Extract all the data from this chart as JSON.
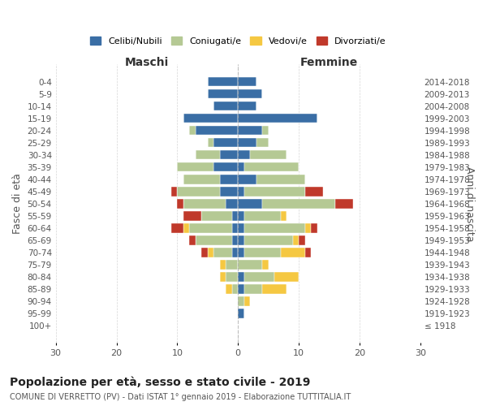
{
  "age_groups": [
    "100+",
    "95-99",
    "90-94",
    "85-89",
    "80-84",
    "75-79",
    "70-74",
    "65-69",
    "60-64",
    "55-59",
    "50-54",
    "45-49",
    "40-44",
    "35-39",
    "30-34",
    "25-29",
    "20-24",
    "15-19",
    "10-14",
    "5-9",
    "0-4"
  ],
  "birth_years": [
    "≤ 1918",
    "1919-1923",
    "1924-1928",
    "1929-1933",
    "1934-1938",
    "1939-1943",
    "1944-1948",
    "1949-1953",
    "1954-1958",
    "1959-1963",
    "1964-1968",
    "1969-1973",
    "1974-1978",
    "1979-1983",
    "1984-1988",
    "1989-1993",
    "1994-1998",
    "1999-2003",
    "2004-2008",
    "2009-2013",
    "2014-2018"
  ],
  "maschi": {
    "celibi": [
      0,
      0,
      0,
      0,
      0,
      0,
      1,
      1,
      1,
      1,
      2,
      3,
      3,
      4,
      3,
      4,
      7,
      9,
      4,
      5,
      5
    ],
    "coniugati": [
      0,
      0,
      0,
      1,
      2,
      2,
      3,
      6,
      7,
      5,
      7,
      7,
      6,
      6,
      4,
      1,
      1,
      0,
      0,
      0,
      0
    ],
    "vedovi": [
      0,
      0,
      0,
      1,
      1,
      1,
      1,
      0,
      1,
      0,
      0,
      0,
      0,
      0,
      0,
      0,
      0,
      0,
      0,
      0,
      0
    ],
    "divorziati": [
      0,
      0,
      0,
      0,
      0,
      0,
      1,
      1,
      2,
      3,
      1,
      1,
      0,
      0,
      0,
      0,
      0,
      0,
      0,
      0,
      0
    ]
  },
  "femmine": {
    "celibi": [
      0,
      1,
      0,
      1,
      1,
      0,
      1,
      1,
      1,
      1,
      4,
      1,
      3,
      1,
      2,
      3,
      4,
      13,
      3,
      4,
      3
    ],
    "coniugati": [
      0,
      0,
      1,
      3,
      5,
      4,
      6,
      8,
      10,
      6,
      12,
      10,
      8,
      9,
      6,
      2,
      1,
      0,
      0,
      0,
      0
    ],
    "vedovi": [
      0,
      0,
      1,
      4,
      4,
      1,
      4,
      1,
      1,
      1,
      0,
      0,
      0,
      0,
      0,
      0,
      0,
      0,
      0,
      0,
      0
    ],
    "divorziati": [
      0,
      0,
      0,
      0,
      0,
      0,
      1,
      1,
      1,
      0,
      3,
      3,
      0,
      0,
      0,
      0,
      0,
      0,
      0,
      0,
      0
    ]
  },
  "colors": {
    "celibi": "#3a6ea5",
    "coniugati": "#b5c994",
    "vedovi": "#f5c842",
    "divorziati": "#c0392b"
  },
  "legend_labels": [
    "Celibi/Nubili",
    "Coniugati/e",
    "Vedovi/e",
    "Divorziati/e"
  ],
  "title": "Popolazione per età, sesso e stato civile - 2019",
  "subtitle": "COMUNE DI VERRETTO (PV) - Dati ISTAT 1° gennaio 2019 - Elaborazione TUTTITALIA.IT",
  "xlabel_left": "Maschi",
  "xlabel_right": "Femmine",
  "ylabel_left": "Fasce di età",
  "ylabel_right": "Anni di nascita",
  "xlim": 30,
  "bg_color": "#ffffff",
  "grid_color": "#cccccc"
}
